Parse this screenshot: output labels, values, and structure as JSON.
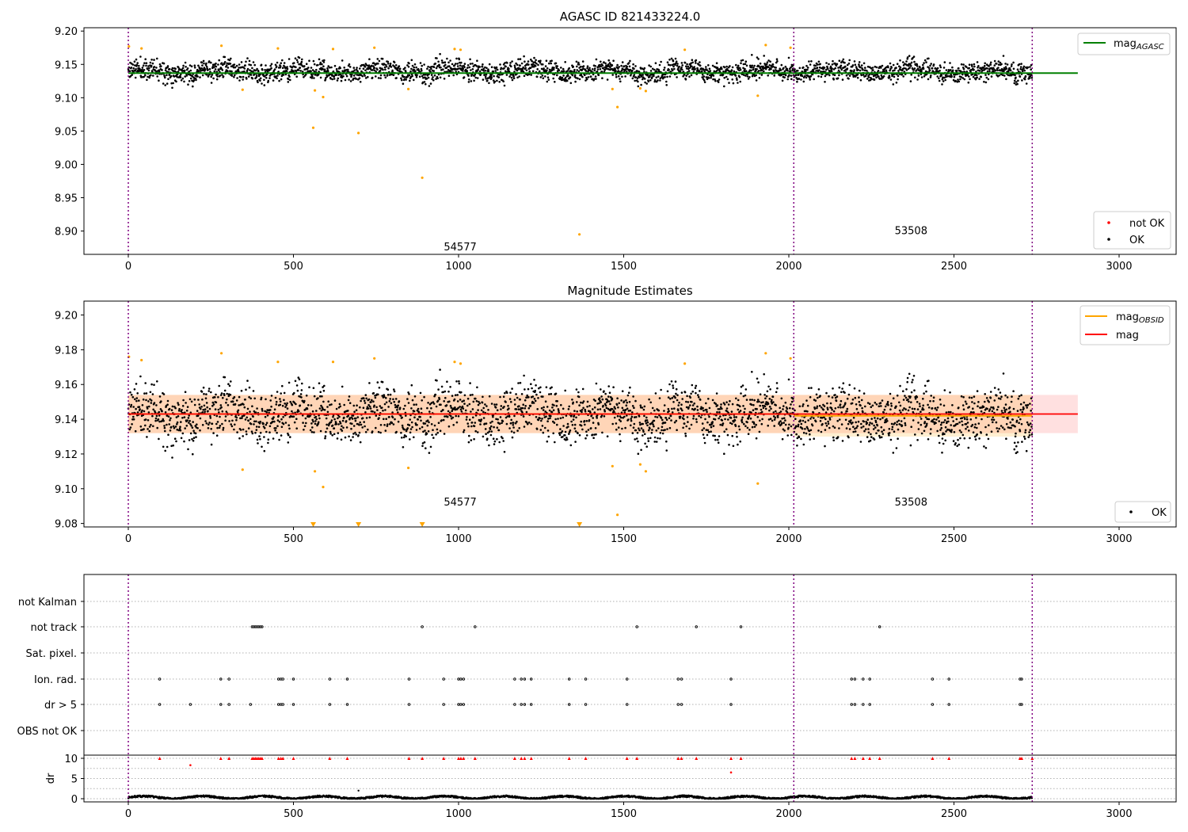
{
  "chart_data": [
    {
      "type": "scatter",
      "title": "AGASC ID 821433224.0",
      "xlim": [
        -135,
        3180
      ],
      "ylim": [
        8.865,
        9.205
      ],
      "xticks": [
        0,
        500,
        1000,
        1500,
        2000,
        2500,
        3000
      ],
      "yticks": [
        8.9,
        8.95,
        9.0,
        9.05,
        9.1,
        9.15,
        9.2
      ],
      "reference_line": {
        "name": "mag_AGASC",
        "y": 9.137,
        "x_range": [
          0,
          2875
        ],
        "color": "#008000"
      },
      "obsid_boundaries": [
        0,
        2015,
        2737
      ],
      "obsid_labels": [
        {
          "text": "54577",
          "x": 1005,
          "y": 8.877
        },
        {
          "text": "53508",
          "x": 2370,
          "y": 8.901
        }
      ],
      "legend_lines": [
        {
          "label": "mag",
          "sub": "AGASC",
          "color": "#008000"
        }
      ],
      "legend_markers": [
        {
          "label": "not OK",
          "color": "#ff0000"
        },
        {
          "label": "OK",
          "color": "#000000"
        }
      ],
      "series": [
        {
          "name": "OK",
          "color": "#000000",
          "segments": [
            {
              "x_range": [
                0,
                2015
              ],
              "center": 9.14,
              "spread": 0.012
            },
            {
              "x_range": [
                2015,
                2737
              ],
              "center": 9.14,
              "spread": 0.012
            }
          ]
        },
        {
          "name": "outliers",
          "color": "#ffa500",
          "points": [
            [
              2,
              9.177
            ],
            [
              40,
              9.174
            ],
            [
              282,
              9.178
            ],
            [
              346,
              9.112
            ],
            [
              453,
              9.174
            ],
            [
              560,
              9.055
            ],
            [
              565,
              9.111
            ],
            [
              590,
              9.101
            ],
            [
              620,
              9.173
            ],
            [
              697,
              9.047
            ],
            [
              745,
              9.175
            ],
            [
              848,
              9.113
            ],
            [
              890,
              8.98
            ],
            [
              988,
              9.173
            ],
            [
              1006,
              9.172
            ],
            [
              1366,
              8.895
            ],
            [
              1466,
              9.113
            ],
            [
              1481,
              9.086
            ],
            [
              1550,
              9.114
            ],
            [
              1567,
              9.11
            ],
            [
              1685,
              9.172
            ],
            [
              1906,
              9.103
            ],
            [
              1930,
              9.179
            ],
            [
              2005,
              9.175
            ]
          ]
        }
      ]
    },
    {
      "type": "scatter",
      "title": "Magnitude Estimates",
      "xlim": [
        -135,
        3180
      ],
      "ylim": [
        9.078,
        9.208
      ],
      "xticks": [
        0,
        500,
        1000,
        1500,
        2000,
        2500,
        3000
      ],
      "yticks": [
        9.08,
        9.1,
        9.12,
        9.14,
        9.16,
        9.18,
        9.2
      ],
      "mag_line": {
        "name": "mag",
        "y": 9.143,
        "x_range": [
          0,
          2875
        ],
        "color": "#ff0000"
      },
      "mag_band": {
        "lower": 9.132,
        "upper": 9.154,
        "x_range": [
          0,
          2875
        ],
        "color": "#ff000022"
      },
      "obsid_lines": [
        {
          "x_range": [
            0,
            2015
          ],
          "mag": 9.143,
          "lower": 9.132,
          "upper": 9.154
        },
        {
          "x_range": [
            2015,
            2737
          ],
          "mag": 9.142,
          "lower": 9.13,
          "upper": 9.154
        }
      ],
      "obsid_boundaries": [
        0,
        2015,
        2737
      ],
      "obsid_labels": [
        {
          "text": "54577",
          "x": 1005,
          "y": 9.0925
        },
        {
          "text": "53508",
          "x": 2370,
          "y": 9.0925
        }
      ],
      "clipped_markers": [
        560,
        697,
        890,
        1366
      ],
      "legend_lines": [
        {
          "label": "mag",
          "sub": "OBSID",
          "color": "#ffa500"
        },
        {
          "label": "mag",
          "sub": "",
          "color": "#ff0000"
        }
      ],
      "legend_markers": [
        {
          "label": "OK",
          "color": "#000000"
        }
      ],
      "series": [
        {
          "name": "OK",
          "color": "#000000",
          "segments": [
            {
              "x_range": [
                0,
                2015
              ],
              "center": 9.143,
              "spread": 0.012
            },
            {
              "x_range": [
                2015,
                2737
              ],
              "center": 9.142,
              "spread": 0.013
            }
          ]
        },
        {
          "name": "outliers",
          "color": "#ffa500",
          "points": [
            [
              2,
              9.176
            ],
            [
              40,
              9.174
            ],
            [
              282,
              9.178
            ],
            [
              346,
              9.111
            ],
            [
              453,
              9.173
            ],
            [
              565,
              9.11
            ],
            [
              590,
              9.101
            ],
            [
              620,
              9.173
            ],
            [
              745,
              9.175
            ],
            [
              848,
              9.112
            ],
            [
              988,
              9.173
            ],
            [
              1006,
              9.172
            ],
            [
              1466,
              9.113
            ],
            [
              1481,
              9.085
            ],
            [
              1550,
              9.114
            ],
            [
              1567,
              9.11
            ],
            [
              1685,
              9.172
            ],
            [
              1906,
              9.103
            ],
            [
              1930,
              9.178
            ],
            [
              2005,
              9.175
            ]
          ]
        }
      ]
    },
    {
      "type": "scatter",
      "xlim": [
        -135,
        3180
      ],
      "xticks": [
        0,
        500,
        1000,
        1500,
        2000,
        2500,
        3000
      ],
      "flag_categories": [
        "not Kalman",
        "not track",
        "Sat. pixel.",
        "Ion. rad.",
        "dr > 5",
        "OBS not OK"
      ],
      "flags": {
        "not Kalman": [],
        "not track": [
          375,
          380,
          385,
          390,
          395,
          400,
          405,
          890,
          1050,
          1540,
          1720,
          1855,
          2275
        ],
        "Sat. pixel.": [],
        "Ion. rad.": [
          95,
          280,
          305,
          455,
          462,
          468,
          500,
          610,
          663,
          850,
          955,
          1000,
          1007,
          1015,
          1170,
          1190,
          1200,
          1220,
          1335,
          1385,
          1510,
          1665,
          1675,
          1825,
          2190,
          2200,
          2225,
          2245,
          2435,
          2485,
          2700,
          2705
        ],
        "dr > 5": [
          95,
          188,
          280,
          305,
          370,
          455,
          462,
          468,
          500,
          610,
          663,
          850,
          955,
          1000,
          1007,
          1015,
          1170,
          1190,
          1200,
          1220,
          1335,
          1385,
          1510,
          1665,
          1675,
          1825,
          2190,
          2200,
          2225,
          2245,
          2435,
          2485,
          2700,
          2705
        ],
        "OBS not OK": []
      },
      "obsid_boundaries": [
        0,
        2015,
        2737
      ],
      "dr": {
        "ylabel": "dr",
        "ylim": [
          -0.5,
          11.3
        ],
        "yticks": [
          0,
          5,
          10
        ],
        "clip_value": 10,
        "typical_range": [
          0,
          0.9
        ],
        "red_points_at_clip": [
          95,
          280,
          305,
          375,
          380,
          385,
          390,
          395,
          400,
          405,
          455,
          462,
          468,
          500,
          610,
          663,
          850,
          890,
          955,
          1000,
          1007,
          1015,
          1050,
          1170,
          1190,
          1200,
          1220,
          1335,
          1385,
          1510,
          1540,
          1665,
          1675,
          1720,
          1825,
          1855,
          2190,
          2200,
          2225,
          2245,
          2275,
          2435,
          2485,
          2700,
          2705,
          2737
        ],
        "red_points_below": [
          [
            188,
            8.3
          ],
          [
            1825,
            6.5
          ]
        ],
        "black_extra": [
          [
            697,
            2.0
          ]
        ]
      }
    }
  ]
}
